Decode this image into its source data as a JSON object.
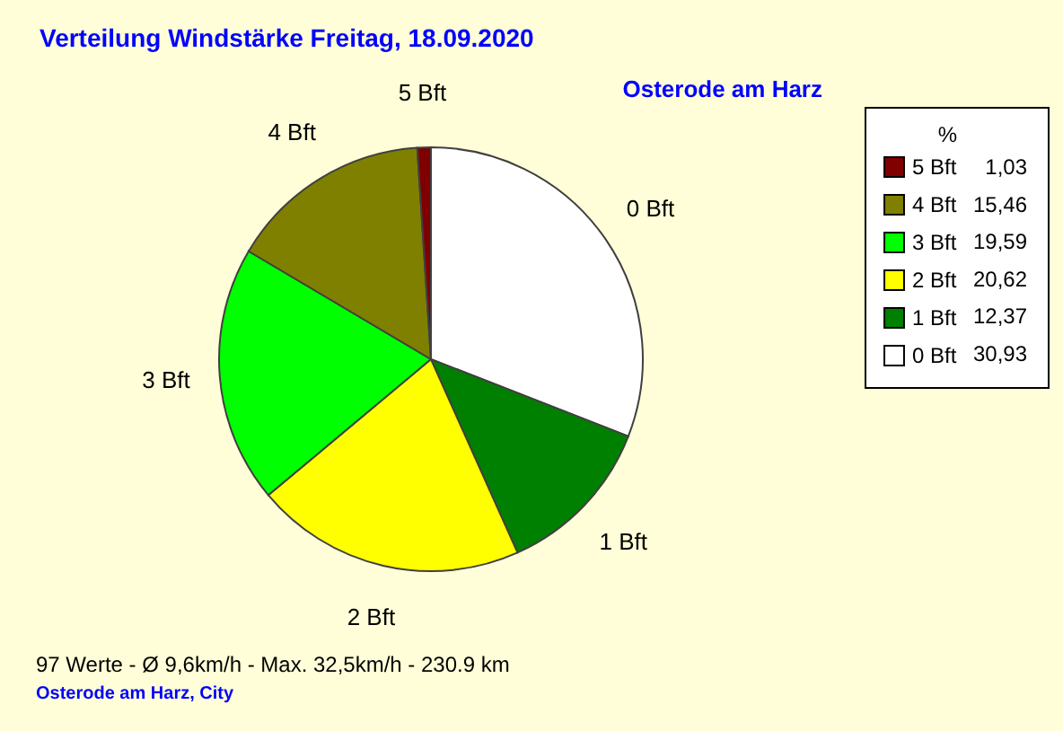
{
  "chart_data": {
    "type": "pie",
    "title": "Verteilung Windstärke  Freitag, 18.09.2020",
    "subtitle": "Osterode am Harz",
    "categories": [
      "0 Bft",
      "1 Bft",
      "2 Bft",
      "3 Bft",
      "4 Bft",
      "5 Bft"
    ],
    "values": [
      30.93,
      12.37,
      20.62,
      19.59,
      15.46,
      1.03
    ],
    "colors": [
      "#ffffff",
      "#008000",
      "#ffff00",
      "#00ff00",
      "#808000",
      "#800000"
    ],
    "value_labels": [
      "30,93",
      "12,37",
      "20,62",
      "19,59",
      "15,46",
      "1,03"
    ],
    "legend_title": "%",
    "legend": "top right",
    "annotations": [
      "97 Werte   -   Ø 9,6km/h  -  Max. 32,5km/h   -   230.9 km",
      "Osterode am Harz, City"
    ]
  }
}
